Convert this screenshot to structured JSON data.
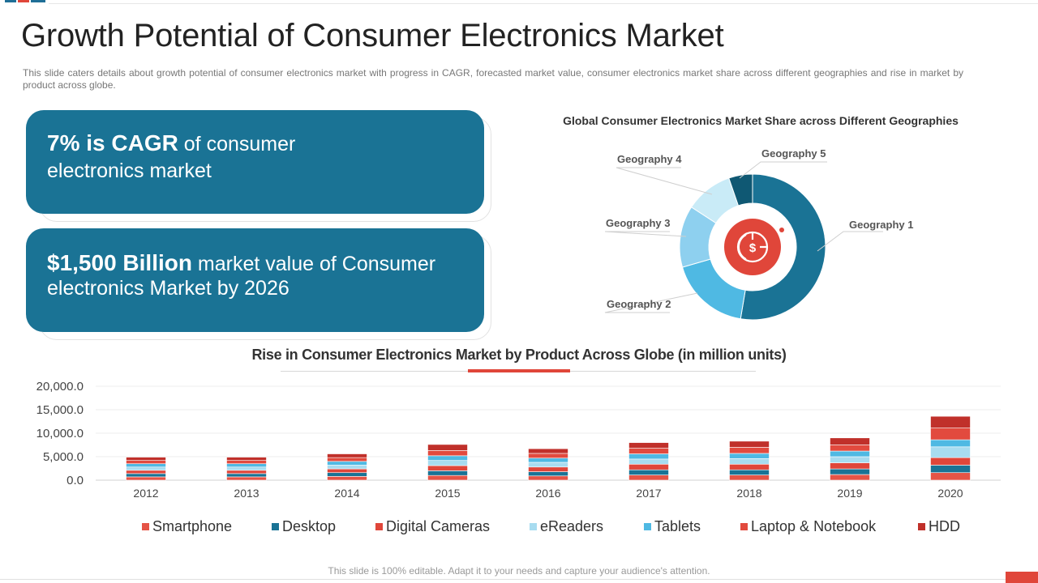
{
  "title": "Growth Potential of Consumer Electronics Market",
  "subtitle": "This slide caters details about growth  potential of consumer electronics market with progress in CAGR, forecasted  market value,  consumer electronics market share across different  geographies  and rise in market by product  across globe.",
  "cards": [
    {
      "highlight": "7% is CAGR",
      "text": " of consumer electronics market"
    },
    {
      "highlight": "$1,500 Billion",
      "text": " market value of Consumer electronics Market by 2026"
    }
  ],
  "footnote": "This slide is 100% editable. Adapt it to your needs and capture your audience's attention.",
  "icons": {
    "center": "dollar-chart-icon"
  },
  "colors": {
    "primary": "#1a7395",
    "accent": "#e0463a",
    "smartphone": "#e55446",
    "desktop": "#1a7395",
    "digital_cameras": "#e0463a",
    "ereaders": "#a8dcf0",
    "tablets": "#4fb9e3",
    "laptop_notebook": "#e24a3e",
    "hdd": "#c0302a"
  },
  "chart_data": [
    {
      "type": "pie",
      "title": "Global Consumer Electronics Market Share across Different Geographies",
      "labels": [
        "Geography 1",
        "Geography 2",
        "Geography 3",
        "Geography 4",
        "Geography 5"
      ],
      "values": [
        50,
        17,
        13,
        10,
        5
      ],
      "colors": [
        "#1a7395",
        "#4fb9e3",
        "#8ed0ef",
        "#c9ebf7",
        "#0f5873"
      ],
      "donut": true,
      "legend": "callouts"
    },
    {
      "type": "bar",
      "stacked": true,
      "title": "Rise in Consumer Electronics Market by Product Across Globe (in million units)",
      "categories": [
        "2012",
        "2013",
        "2014",
        "2015",
        "2016",
        "2017",
        "2018",
        "2019",
        "2020"
      ],
      "series": [
        {
          "name": "Smartphone",
          "color": "#e55446",
          "values": [
            700,
            700,
            800,
            1000,
            900,
            1100,
            1100,
            1200,
            1600
          ]
        },
        {
          "name": "Desktop",
          "color": "#1a7395",
          "values": [
            700,
            700,
            800,
            1000,
            900,
            1100,
            1100,
            1200,
            1600
          ]
        },
        {
          "name": "Digital Cameras",
          "color": "#e0463a",
          "values": [
            700,
            700,
            800,
            1100,
            1000,
            1200,
            1200,
            1300,
            1600
          ]
        },
        {
          "name": "eReaders",
          "color": "#a8dcf0",
          "values": [
            700,
            700,
            800,
            1100,
            1000,
            1100,
            1200,
            1300,
            2300
          ]
        },
        {
          "name": "Tablets",
          "color": "#4fb9e3",
          "values": [
            700,
            700,
            800,
            1000,
            900,
            1100,
            1100,
            1200,
            1500
          ]
        },
        {
          "name": "Laptop & Notebook",
          "color": "#e24a3e",
          "values": [
            700,
            700,
            800,
            1100,
            1000,
            1200,
            1300,
            1300,
            2500
          ]
        },
        {
          "name": "HDD",
          "color": "#c0302a",
          "values": [
            700,
            700,
            800,
            1300,
            1000,
            1200,
            1300,
            1500,
            2500
          ]
        }
      ],
      "ylim": [
        0,
        20000
      ],
      "yticks": [
        "20,000.0",
        "15,000.0",
        "10,000.0",
        "5,000.0",
        "0.0"
      ],
      "ytick_values": [
        20000,
        15000,
        10000,
        5000,
        0
      ],
      "grid": true,
      "legend": "bottom"
    }
  ]
}
